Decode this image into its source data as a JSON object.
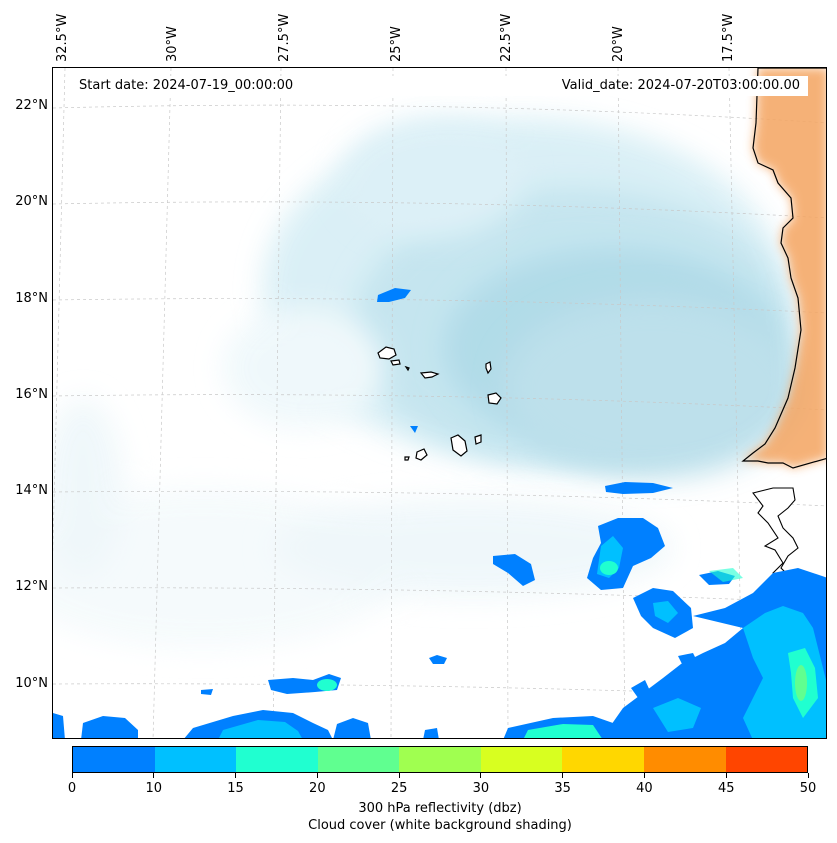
{
  "map": {
    "start_date": "Start date: 2024-07-19_00:00:00",
    "valid_date": "Valid_date: 2024-07-20T03:00:00.00",
    "longitude_labels": [
      "32.5°W",
      "30°W",
      "27.5°W",
      "25°W",
      "22.5°W",
      "20°W",
      "17.5°W"
    ],
    "latitude_labels": [
      "22°N",
      "20°N",
      "18°N",
      "16°N",
      "14°N",
      "12°N",
      "10°N"
    ],
    "land_color": "#f4a460",
    "cloud_color": "#a9d8e6",
    "ocean_color": "#ffffff"
  },
  "colorbar": {
    "ticks": [
      "0",
      "10",
      "15",
      "20",
      "25",
      "30",
      "35",
      "40",
      "45",
      "50"
    ],
    "colors": [
      "#0080ff",
      "#00c0ff",
      "#20ffd0",
      "#60ff90",
      "#a0ff50",
      "#d8ff20",
      "#ffd700",
      "#ff8c00",
      "#ff4500"
    ],
    "label": "300 hPa reflectivity (dbz)",
    "sublabel": "Cloud cover (white background shading)"
  }
}
